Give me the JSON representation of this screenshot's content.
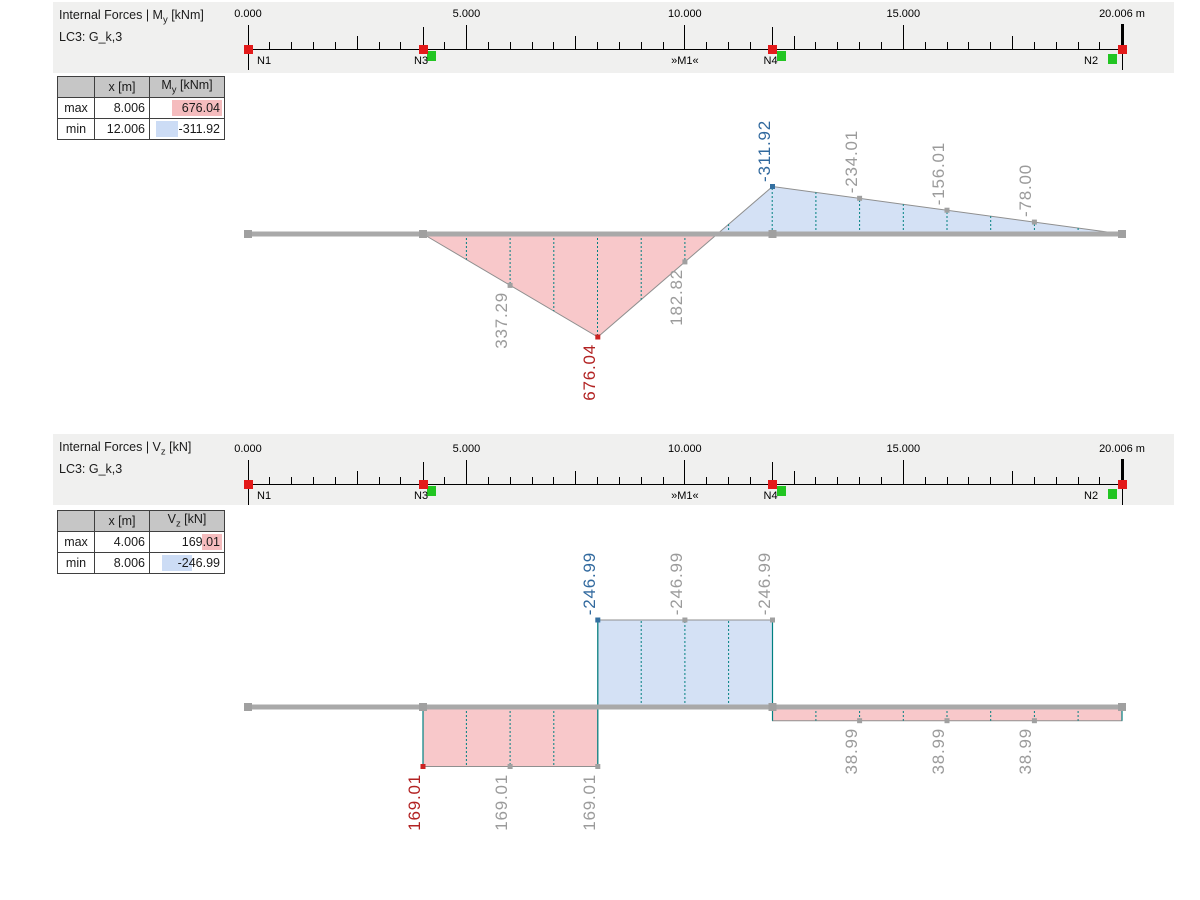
{
  "colors": {
    "positive_fill": "#f8c8ca",
    "negative_fill": "#d4e1f5",
    "hatch_teal": "#008080",
    "outline_gray": "#8f8f8f",
    "axis_gray": "#a9a9a9",
    "axis_marker_gray": "#a0a0a0",
    "label_gray": "#9b9b9b",
    "label_red": "#b22222",
    "label_blue": "#31699e",
    "marker_red": "#cc2222",
    "marker_blue": "#336fa0",
    "marker_gray": "#a0a0a0",
    "node_red": "#e31a1a",
    "node_green": "#22c522",
    "band_bg": "#f0f0ef",
    "table_header_bg": "#c6c6c6",
    "hl_pink": "#f5bcbe",
    "hl_blue": "#ccdcf5"
  },
  "panels": [
    {
      "title_pre": "Internal Forces | M",
      "title_sub": "y",
      "title_post": " [kNm]",
      "subtitle": "LC3: G_k,3",
      "table": {
        "col_x": "x [m]",
        "col_v_pre": "M",
        "col_v_sub": "y",
        "col_v_post": " [kNm]",
        "rows": [
          {
            "label": "max",
            "x": "8.006",
            "value": "676.04"
          },
          {
            "label": "min",
            "x": "12.006",
            "value": "-311.92"
          }
        ]
      },
      "ruler": {
        "labels": [
          {
            "text": "0.000",
            "x": 0
          },
          {
            "text": "5.000",
            "x": 5
          },
          {
            "text": "10.000",
            "x": 10
          },
          {
            "text": "15.000",
            "x": 15
          }
        ],
        "end": {
          "text": "20.006 m",
          "x": 20.006
        },
        "nodes": [
          {
            "name": "N1",
            "x": 0
          },
          {
            "name": "N3",
            "x": 4.006,
            "green": "right"
          },
          {
            "name": "N4",
            "x": 12.006,
            "green": "right"
          },
          {
            "name": "N2",
            "x": 20.006,
            "green": "left"
          }
        ],
        "member": {
          "text": "»M1«",
          "x": 10
        }
      },
      "chart_data": {
        "type": "area",
        "title": "Internal Forces | My [kNm]",
        "load_case": "LC3: G_k,3",
        "quantity": "M_y",
        "unit": "kNm",
        "xlabel": "x [m]",
        "x_range": [
          0,
          20.006
        ],
        "x_m": [
          0,
          4.006,
          8.006,
          12.006,
          20.006
        ],
        "values": [
          0,
          0,
          676.04,
          -311.92,
          0
        ],
        "orientation": "positive values plotted below beam axis",
        "extremes": {
          "max": {
            "x": 8.006,
            "v": 676.04
          },
          "min": {
            "x": 12.006,
            "v": -311.92
          }
        }
      },
      "labels": [
        {
          "text": "337.29",
          "x": 6,
          "v": 337.29,
          "color": "gray"
        },
        {
          "text": "676.04",
          "x": 8.006,
          "v": 676.04,
          "color": "red"
        },
        {
          "text": "182.82",
          "x": 10,
          "v": 182.82,
          "color": "gray"
        },
        {
          "text": "-311.92",
          "x": 12.006,
          "v": -311.92,
          "color": "blue"
        },
        {
          "text": "-234.01",
          "x": 14,
          "v": -234.01,
          "color": "gray"
        },
        {
          "text": "-156.01",
          "x": 16,
          "v": -156.01,
          "color": "gray"
        },
        {
          "text": "-78.00",
          "x": 18,
          "v": -78.0,
          "color": "gray"
        }
      ]
    },
    {
      "title_pre": "Internal Forces | V",
      "title_sub": "z",
      "title_post": " [kN]",
      "subtitle": "LC3: G_k,3",
      "table": {
        "col_x": "x [m]",
        "col_v_pre": "V",
        "col_v_sub": "z",
        "col_v_post": " [kN]",
        "rows": [
          {
            "label": "max",
            "x": "4.006",
            "value": "169.01"
          },
          {
            "label": "min",
            "x": "8.006",
            "value": "-246.99"
          }
        ]
      },
      "ruler": {
        "labels": [
          {
            "text": "0.000",
            "x": 0
          },
          {
            "text": "5.000",
            "x": 5
          },
          {
            "text": "10.000",
            "x": 10
          },
          {
            "text": "15.000",
            "x": 15
          }
        ],
        "end": {
          "text": "20.006 m",
          "x": 20.006
        },
        "nodes": [
          {
            "name": "N1",
            "x": 0
          },
          {
            "name": "N3",
            "x": 4.006,
            "green": "right"
          },
          {
            "name": "N4",
            "x": 12.006,
            "green": "right"
          },
          {
            "name": "N2",
            "x": 20.006,
            "green": "left"
          }
        ],
        "member": {
          "text": "»M1«",
          "x": 10
        }
      },
      "chart_data": {
        "type": "step-area",
        "title": "Internal Forces | Vz [kN]",
        "load_case": "LC3: G_k,3",
        "quantity": "V_z",
        "unit": "kN",
        "xlabel": "x [m]",
        "x_range": [
          0,
          20.006
        ],
        "segments": [
          {
            "from": 0,
            "to": 4.006,
            "value": 0
          },
          {
            "from": 4.006,
            "to": 8.006,
            "value": 169.01
          },
          {
            "from": 8.006,
            "to": 12.006,
            "value": -246.99
          },
          {
            "from": 12.006,
            "to": 20.006,
            "value": 38.99
          }
        ],
        "orientation": "positive values plotted below beam axis",
        "extremes": {
          "max": {
            "x": 4.006,
            "v": 169.01
          },
          "min": {
            "x": 8.006,
            "v": -246.99
          }
        }
      },
      "labels": [
        {
          "text": "169.01",
          "x": 4.006,
          "v": 169.01,
          "color": "red"
        },
        {
          "text": "169.01",
          "x": 6,
          "v": 169.01,
          "color": "gray"
        },
        {
          "text": "169.01",
          "x": 8.006,
          "v": 169.01,
          "color": "gray"
        },
        {
          "text": "-246.99",
          "x": 8.006,
          "v": -246.99,
          "color": "blue"
        },
        {
          "text": "-246.99",
          "x": 10,
          "v": -246.99,
          "color": "gray"
        },
        {
          "text": "-246.99",
          "x": 12.006,
          "v": -246.99,
          "color": "gray"
        },
        {
          "text": "38.99",
          "x": 14,
          "v": 38.99,
          "color": "gray"
        },
        {
          "text": "38.99",
          "x": 16,
          "v": 38.99,
          "color": "gray"
        },
        {
          "text": "38.99",
          "x": 18,
          "v": 38.99,
          "color": "gray"
        }
      ]
    }
  ]
}
